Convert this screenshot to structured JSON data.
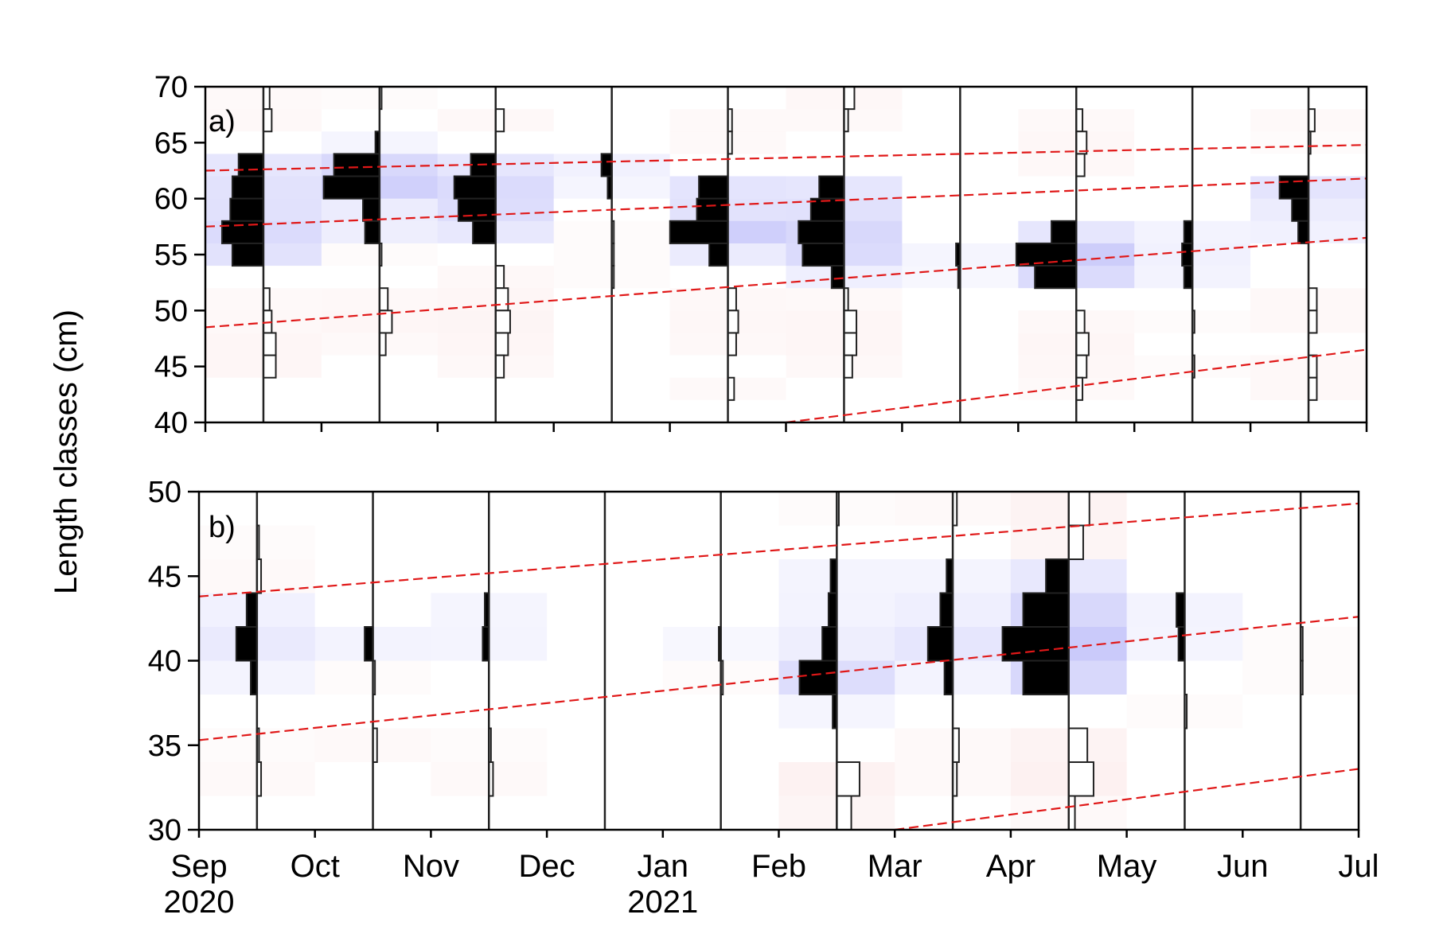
{
  "figure": {
    "ylabel": "Length classes (cm)",
    "x_ticks": [
      "Sep",
      "Oct",
      "Nov",
      "Dec",
      "Jan",
      "Feb",
      "Mar",
      "Apr",
      "May",
      "Jun",
      "Jul"
    ],
    "x_year_labels": [
      {
        "at": "Sep",
        "label": "2020"
      },
      {
        "at": "Jan",
        "label": "2021"
      }
    ],
    "colors": {
      "positive_fill": "#000000",
      "negative_fill": "#ffffff",
      "bar_outline": "#222222",
      "blue_heat": "#5a5af0",
      "red_heat": "#f0a0a0",
      "growth_curve": "#e01818"
    }
  },
  "chart_data": [
    {
      "type": "heatmap",
      "panel_label": "a)",
      "ylim": [
        40,
        70
      ],
      "yticks": [
        40,
        45,
        50,
        55,
        60,
        65,
        70
      ],
      "bin_width": 2,
      "sample_months": [
        0.5,
        1.5,
        2.5,
        3.5,
        4.5,
        5.5,
        6.5,
        7.5,
        8.5,
        9.5
      ],
      "histograms": [
        {
          "month": 0.5,
          "bins": [
            [
              68,
              0.15
            ],
            [
              66,
              0.2
            ],
            [
              62,
              -0.6
            ],
            [
              60,
              -0.75
            ],
            [
              58,
              -0.8
            ],
            [
              56,
              -1.0
            ],
            [
              54,
              -0.75
            ],
            [
              50,
              0.15
            ],
            [
              48,
              0.2
            ],
            [
              46,
              0.3
            ],
            [
              44,
              0.3
            ]
          ]
        },
        {
          "month": 1.5,
          "bins": [
            [
              68,
              0.05
            ],
            [
              64,
              -0.1
            ],
            [
              62,
              -1.1
            ],
            [
              60,
              -1.35
            ],
            [
              58,
              -0.4
            ],
            [
              56,
              -0.35
            ],
            [
              54,
              0.05
            ],
            [
              50,
              0.2
            ],
            [
              48,
              0.3
            ],
            [
              46,
              0.15
            ]
          ]
        },
        {
          "month": 2.5,
          "bins": [
            [
              66,
              0.2
            ],
            [
              62,
              -0.6
            ],
            [
              60,
              -1.0
            ],
            [
              58,
              -0.9
            ],
            [
              56,
              -0.55
            ],
            [
              52,
              0.2
            ],
            [
              50,
              0.3
            ],
            [
              48,
              0.35
            ],
            [
              46,
              0.3
            ],
            [
              44,
              0.2
            ]
          ]
        },
        {
          "month": 3.5,
          "bins": [
            [
              62,
              -0.25
            ],
            [
              60,
              -0.1
            ],
            [
              56,
              0.05
            ],
            [
              54,
              0.05
            ],
            [
              52,
              0.05
            ]
          ]
        },
        {
          "month": 4.5,
          "bins": [
            [
              66,
              0.1
            ],
            [
              64,
              0.1
            ],
            [
              60,
              -0.7
            ],
            [
              58,
              -0.75
            ],
            [
              56,
              -1.4
            ],
            [
              54,
              -0.45
            ],
            [
              50,
              0.2
            ],
            [
              48,
              0.25
            ],
            [
              46,
              0.2
            ],
            [
              42,
              0.15
            ]
          ]
        },
        {
          "month": 5.5,
          "bins": [
            [
              68,
              0.25
            ],
            [
              66,
              0.1
            ],
            [
              60,
              -0.6
            ],
            [
              58,
              -0.8
            ],
            [
              56,
              -1.1
            ],
            [
              54,
              -1.0
            ],
            [
              52,
              -0.3
            ],
            [
              50,
              0.1
            ],
            [
              48,
              0.3
            ],
            [
              46,
              0.3
            ],
            [
              44,
              0.2
            ]
          ]
        },
        {
          "month": 6.5,
          "bins": [
            [
              54,
              -0.1
            ],
            [
              52,
              -0.05
            ]
          ]
        },
        {
          "month": 7.5,
          "bins": [
            [
              66,
              0.15
            ],
            [
              64,
              0.25
            ],
            [
              62,
              0.2
            ],
            [
              56,
              -0.6
            ],
            [
              54,
              -1.45
            ],
            [
              52,
              -1.0
            ],
            [
              48,
              0.2
            ],
            [
              46,
              0.3
            ],
            [
              44,
              0.25
            ],
            [
              42,
              0.15
            ]
          ]
        },
        {
          "month": 8.5,
          "bins": [
            [
              56,
              -0.2
            ],
            [
              54,
              -0.25
            ],
            [
              52,
              -0.2
            ],
            [
              48,
              0.05
            ],
            [
              44,
              0.05
            ]
          ]
        },
        {
          "month": 9.5,
          "bins": [
            [
              66,
              0.15
            ],
            [
              64,
              0.05
            ],
            [
              60,
              -0.7
            ],
            [
              58,
              -0.4
            ],
            [
              56,
              -0.25
            ],
            [
              50,
              0.2
            ],
            [
              48,
              0.2
            ],
            [
              44,
              0.2
            ],
            [
              42,
              0.2
            ]
          ]
        }
      ],
      "growth_curves": [
        {
          "x": [
            0,
            10
          ],
          "y": [
            62.5,
            64.8
          ]
        },
        {
          "x": [
            0,
            10
          ],
          "y": [
            57.5,
            61.8
          ]
        },
        {
          "x": [
            0,
            10
          ],
          "y": [
            48.5,
            56.5
          ]
        },
        {
          "x": [
            5,
            10
          ],
          "y": [
            40,
            46.5
          ]
        }
      ]
    },
    {
      "type": "heatmap",
      "panel_label": "b)",
      "ylim": [
        30,
        50
      ],
      "yticks": [
        30,
        35,
        40,
        45,
        50
      ],
      "bin_width": 2,
      "sample_months": [
        0.5,
        1.5,
        2.5,
        3.5,
        4.5,
        5.5,
        6.5,
        7.5,
        8.5,
        9.5
      ],
      "histograms": [
        {
          "month": 0.5,
          "bins": [
            [
              46,
              0.05
            ],
            [
              44,
              0.1
            ],
            [
              42,
              -0.25
            ],
            [
              40,
              -0.5
            ],
            [
              38,
              -0.15
            ],
            [
              34,
              0.05
            ],
            [
              32,
              0.1
            ]
          ]
        },
        {
          "month": 1.5,
          "bins": [
            [
              40,
              -0.2
            ],
            [
              38,
              0.05
            ],
            [
              34,
              0.1
            ]
          ]
        },
        {
          "month": 2.5,
          "bins": [
            [
              42,
              -0.1
            ],
            [
              40,
              -0.15
            ],
            [
              34,
              0.05
            ],
            [
              32,
              0.1
            ]
          ]
        },
        {
          "month": 3.5,
          "bins": []
        },
        {
          "month": 4.5,
          "bins": [
            [
              40,
              -0.05
            ],
            [
              38,
              0.05
            ]
          ]
        },
        {
          "month": 5.5,
          "bins": [
            [
              48,
              0.05
            ],
            [
              44,
              -0.15
            ],
            [
              42,
              -0.2
            ],
            [
              40,
              -0.35
            ],
            [
              38,
              -0.9
            ],
            [
              36,
              -0.1
            ],
            [
              32,
              0.55
            ],
            [
              30,
              0.35
            ]
          ]
        },
        {
          "month": 6.5,
          "bins": [
            [
              48,
              0.1
            ],
            [
              44,
              -0.15
            ],
            [
              42,
              -0.3
            ],
            [
              40,
              -0.6
            ],
            [
              38,
              -0.2
            ],
            [
              34,
              0.15
            ],
            [
              32,
              0.1
            ]
          ]
        },
        {
          "month": 7.5,
          "bins": [
            [
              48,
              0.5
            ],
            [
              46,
              0.35
            ],
            [
              44,
              -0.55
            ],
            [
              42,
              -1.1
            ],
            [
              40,
              -1.6
            ],
            [
              38,
              -1.1
            ],
            [
              34,
              0.45
            ],
            [
              32,
              0.6
            ],
            [
              30,
              0.15
            ]
          ]
        },
        {
          "month": 8.5,
          "bins": [
            [
              42,
              -0.2
            ],
            [
              40,
              -0.15
            ],
            [
              36,
              0.05
            ]
          ]
        },
        {
          "month": 9.5,
          "bins": [
            [
              40,
              0.05
            ],
            [
              38,
              0.05
            ]
          ]
        }
      ],
      "growth_curves": [
        {
          "x": [
            0,
            10
          ],
          "y": [
            43.8,
            49.3
          ]
        },
        {
          "x": [
            0,
            10
          ],
          "y": [
            35.3,
            42.6
          ]
        },
        {
          "x": [
            6,
            10
          ],
          "y": [
            30,
            33.6
          ]
        }
      ]
    }
  ]
}
